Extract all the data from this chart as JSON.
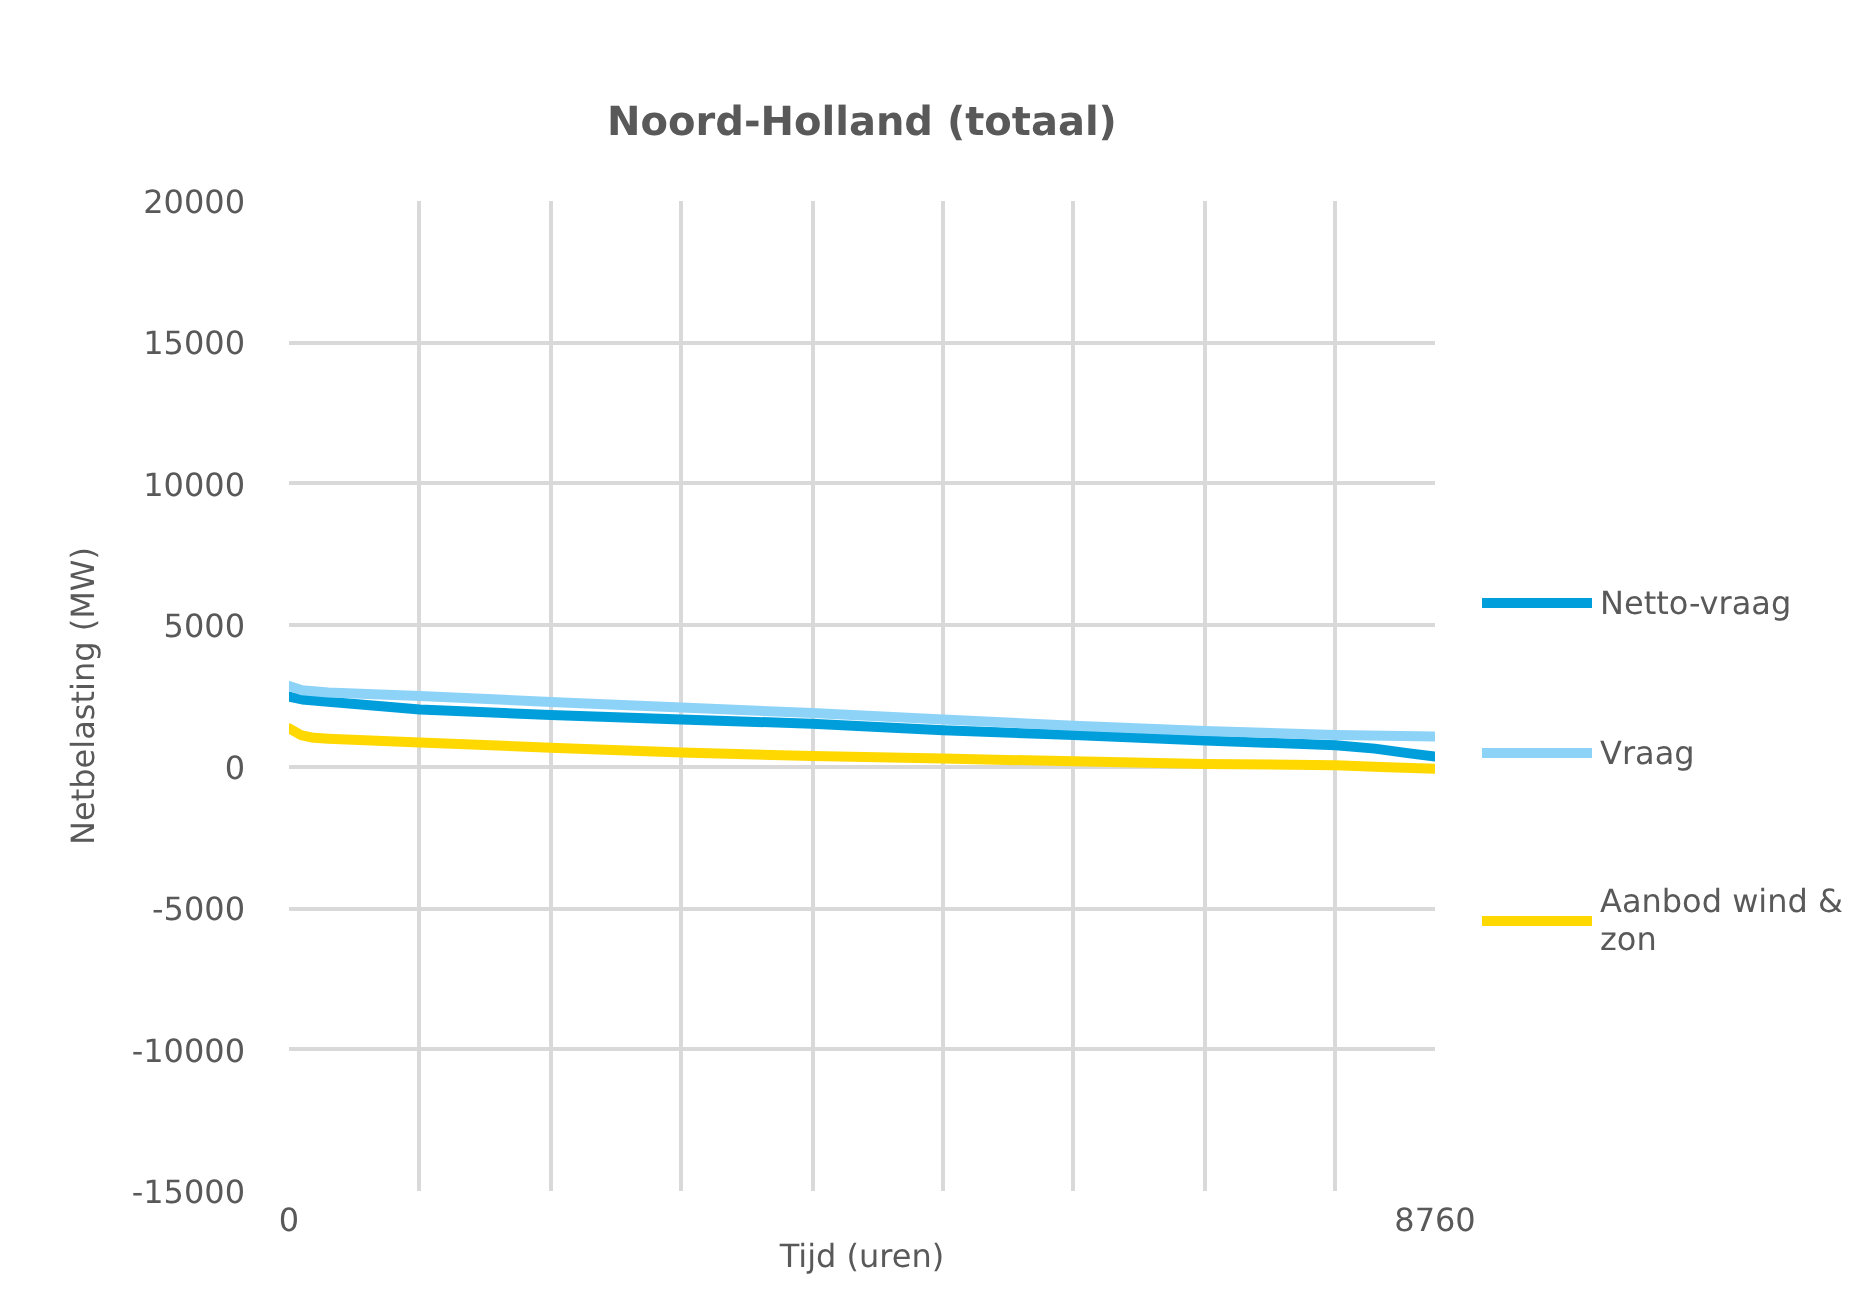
{
  "chart_data": {
    "type": "line",
    "title": "Noord-Holland (totaal)",
    "xlabel": "Tijd (uren)",
    "ylabel": "Netbelasting (MW)",
    "xlim": [
      0,
      8760
    ],
    "xticks": [
      0,
      {
        "value": 1000,
        "label": null
      },
      {
        "value": 2000,
        "label": null
      },
      {
        "value": 3000,
        "label": null
      },
      {
        "value": 4000,
        "label": null
      },
      {
        "value": 5000,
        "label": null
      },
      {
        "value": 6000,
        "label": null
      },
      {
        "value": 7000,
        "label": null
      },
      {
        "value": 8000,
        "label": null
      },
      8760
    ],
    "ylim": [
      -15000,
      20000
    ],
    "yticks": [
      -15000,
      -10000,
      -5000,
      0,
      5000,
      10000,
      15000,
      20000
    ],
    "grid": true,
    "legend": "right",
    "series": [
      {
        "name": "Netto-vraag",
        "color": "#009fdc",
        "x": [
          0,
          100,
          300,
          1000,
          2000,
          3000,
          4000,
          5000,
          6000,
          7000,
          8000,
          8300,
          8550,
          8760
        ],
        "values": [
          2480,
          2380,
          2300,
          2020,
          1830,
          1670,
          1520,
          1290,
          1120,
          930,
          760,
          640,
          480,
          360
        ]
      },
      {
        "name": "Vraag",
        "color": "#8dd3f8",
        "x": [
          0,
          100,
          300,
          1000,
          2000,
          3000,
          4000,
          5000,
          6000,
          7000,
          8000,
          8760
        ],
        "values": [
          2850,
          2700,
          2620,
          2500,
          2290,
          2090,
          1900,
          1670,
          1450,
          1260,
          1120,
          1070
        ]
      },
      {
        "name": "Aanbod wind & zon",
        "color": "#ffd800",
        "x": [
          0,
          90,
          190,
          300,
          1000,
          2000,
          3000,
          4000,
          5000,
          6000,
          7000,
          8000,
          8400,
          8760
        ],
        "values": [
          1360,
          1120,
          1020,
          990,
          860,
          670,
          500,
          380,
          290,
          190,
          100,
          50,
          -20,
          -70
        ]
      }
    ]
  }
}
